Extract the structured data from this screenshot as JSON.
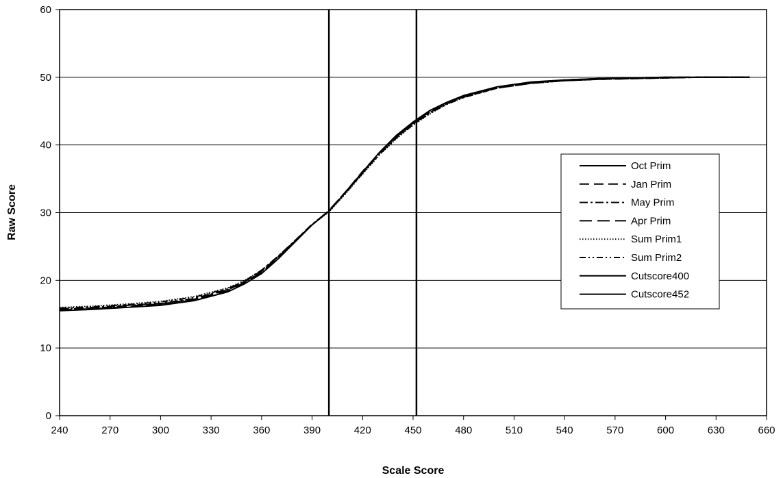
{
  "chart_data": {
    "type": "line",
    "title": "",
    "xlabel": "Scale Score",
    "ylabel": "Raw Score",
    "xlim": [
      240,
      660
    ],
    "ylim": [
      0,
      60
    ],
    "xticks": [
      240,
      270,
      300,
      330,
      360,
      390,
      420,
      450,
      480,
      510,
      540,
      570,
      600,
      630,
      660
    ],
    "yticks": [
      0,
      10,
      20,
      30,
      40,
      50,
      60
    ],
    "grid": "horizontal",
    "legend_position": "right",
    "x": [
      240,
      260,
      280,
      300,
      320,
      340,
      350,
      360,
      370,
      380,
      390,
      400,
      410,
      420,
      430,
      440,
      450,
      460,
      470,
      480,
      500,
      520,
      540,
      560,
      580,
      600,
      620,
      650
    ],
    "series": [
      {
        "name": "Oct Prim",
        "style": "solid",
        "color": "#000000",
        "values": [
          15.5,
          15.7,
          16.0,
          16.3,
          17.0,
          18.3,
          19.5,
          21.0,
          23.2,
          25.7,
          28.2,
          30.2,
          33.0,
          36.0,
          38.9,
          41.4,
          43.4,
          45.1,
          46.3,
          47.3,
          48.6,
          49.3,
          49.6,
          49.8,
          49.9,
          50.0,
          50.0,
          50.0
        ]
      },
      {
        "name": "Jan Prim",
        "style": "dashed",
        "color": "#000000",
        "values": [
          15.7,
          15.9,
          16.2,
          16.5,
          17.2,
          18.6,
          19.8,
          21.3,
          23.5,
          25.8,
          28.2,
          30.3,
          33.1,
          36.1,
          38.8,
          41.2,
          43.2,
          44.9,
          46.2,
          47.2,
          48.5,
          49.2,
          49.5,
          49.7,
          49.8,
          49.9,
          50.0,
          50.0
        ]
      },
      {
        "name": "May Prim",
        "style": "dashdot",
        "color": "#000000",
        "values": [
          15.8,
          16.0,
          16.3,
          16.6,
          17.3,
          18.7,
          19.9,
          21.5,
          23.6,
          25.9,
          28.3,
          30.2,
          33.0,
          35.9,
          38.7,
          41.1,
          43.1,
          44.8,
          46.1,
          47.1,
          48.4,
          49.1,
          49.5,
          49.7,
          49.8,
          49.9,
          50.0,
          50.0
        ]
      },
      {
        "name": "Apr Prim",
        "style": "longdash",
        "color": "#000000",
        "values": [
          15.6,
          15.8,
          16.1,
          16.4,
          17.1,
          18.5,
          19.7,
          21.2,
          23.4,
          25.8,
          28.2,
          30.3,
          33.1,
          36.0,
          38.8,
          41.3,
          43.3,
          45.0,
          46.2,
          47.2,
          48.5,
          49.2,
          49.6,
          49.8,
          49.9,
          50.0,
          50.0,
          50.0
        ]
      },
      {
        "name": "Sum Prim1",
        "style": "dotted",
        "color": "#000000",
        "values": [
          16.0,
          16.2,
          16.5,
          16.9,
          17.6,
          18.9,
          20.0,
          21.5,
          23.6,
          25.9,
          28.2,
          30.1,
          32.8,
          35.7,
          38.5,
          40.9,
          42.9,
          44.6,
          46.0,
          47.0,
          48.4,
          49.1,
          49.5,
          49.7,
          49.8,
          49.9,
          50.0,
          50.0
        ]
      },
      {
        "name": "Sum Prim2",
        "style": "dashdotdot",
        "color": "#000000",
        "values": [
          15.9,
          16.1,
          16.4,
          16.8,
          17.5,
          18.8,
          19.9,
          21.4,
          23.5,
          25.9,
          28.2,
          30.2,
          32.9,
          35.8,
          38.6,
          41.0,
          43.0,
          44.7,
          46.0,
          47.0,
          48.4,
          49.1,
          49.5,
          49.7,
          49.8,
          49.9,
          50.0,
          50.0
        ]
      },
      {
        "name": "Cutscore400",
        "style": "solid",
        "color": "#000000",
        "vertical_x": 400
      },
      {
        "name": "Cutscore452",
        "style": "solid",
        "color": "#000000",
        "vertical_x": 452
      }
    ]
  }
}
